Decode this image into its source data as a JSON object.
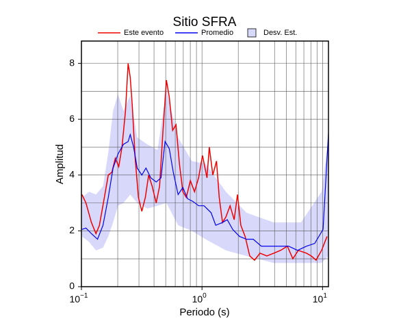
{
  "chart_data": {
    "type": "line",
    "title": "Sitio SFRA",
    "xlabel": "Periodo (s)",
    "ylabel": "Amplitud",
    "log_x": true,
    "grid": true,
    "xlim": [
      0.1,
      11.2
    ],
    "ylim": [
      0,
      8.8
    ],
    "xticks": [
      {
        "value": 0.1,
        "label": "10",
        "exponent": "−1"
      },
      {
        "value": 1,
        "label": "10",
        "exponent": "0"
      },
      {
        "value": 10,
        "label": "10",
        "exponent": "1"
      }
    ],
    "yticks": [
      0,
      2,
      4,
      6,
      8
    ],
    "xgrid": [
      0.2,
      0.3,
      0.4,
      0.5,
      0.6,
      0.7,
      0.8,
      0.9,
      1,
      2,
      3,
      4,
      5,
      6,
      7,
      8,
      9,
      10
    ],
    "ygrid": [
      1,
      2,
      3,
      4,
      5,
      6,
      7,
      8
    ],
    "band": {
      "name": "Desv. Est.",
      "color": "#d8d8fb",
      "x": [
        0.101,
        0.116,
        0.132,
        0.151,
        0.167,
        0.183,
        0.201,
        0.223,
        0.254,
        0.29,
        0.352,
        0.428,
        0.507,
        0.634,
        0.822,
        1.07,
        1.58,
        2.34,
        3.94,
        6.63,
        9.82,
        11.2
      ],
      "upper": [
        3.2,
        3.4,
        3.3,
        3.6,
        4.8,
        6.3,
        6.9,
        6.3,
        6.85,
        5.35,
        5.1,
        4.9,
        7.05,
        5.35,
        4.5,
        4.4,
        3.4,
        2.65,
        2.3,
        2.3,
        3.4,
        5.35
      ],
      "lower": [
        1.8,
        1.6,
        1.3,
        1.4,
        1.8,
        2.3,
        2.9,
        3.0,
        3.3,
        3.0,
        2.8,
        2.9,
        3.0,
        2.2,
        2.0,
        1.7,
        1.3,
        1.1,
        0.85,
        0.85,
        0.85,
        1.1
      ]
    },
    "series": [
      {
        "name": "Este evento",
        "color": "#ee0000",
        "x": [
          0.101,
          0.109,
          0.121,
          0.132,
          0.141,
          0.155,
          0.167,
          0.179,
          0.191,
          0.204,
          0.217,
          0.232,
          0.244,
          0.254,
          0.264,
          0.279,
          0.297,
          0.317,
          0.339,
          0.361,
          0.386,
          0.417,
          0.445,
          0.475,
          0.507,
          0.535,
          0.571,
          0.609,
          0.65,
          0.694,
          0.741,
          0.801,
          0.867,
          0.937,
          1.01,
          1.1,
          1.15,
          1.23,
          1.32,
          1.39,
          1.48,
          1.58,
          1.71,
          1.85,
          1.97,
          2.1,
          2.28,
          2.49,
          2.73,
          3.03,
          3.45,
          3.94,
          4.48,
          5.11,
          5.67,
          6.3,
          7.36,
          8.07,
          8.84,
          9.82,
          10.9
        ],
        "values": [
          3.3,
          3.0,
          2.3,
          1.9,
          2.2,
          3.2,
          4.0,
          4.1,
          4.6,
          4.3,
          5.0,
          6.3,
          8.0,
          7.5,
          6.5,
          4.6,
          3.2,
          2.7,
          3.2,
          4.0,
          3.6,
          3.0,
          3.6,
          5.6,
          7.4,
          6.8,
          5.6,
          5.8,
          4.4,
          3.4,
          3.2,
          3.8,
          3.4,
          3.9,
          4.7,
          3.9,
          5.0,
          4.0,
          4.5,
          3.2,
          2.3,
          2.5,
          2.9,
          2.4,
          3.3,
          2.2,
          1.8,
          1.1,
          0.95,
          1.2,
          1.1,
          1.2,
          1.3,
          1.45,
          1.0,
          1.3,
          1.2,
          1.1,
          0.95,
          1.3,
          1.8
        ]
      },
      {
        "name": "Promedio",
        "color": "#0000ee",
        "x": [
          0.101,
          0.109,
          0.121,
          0.136,
          0.151,
          0.167,
          0.183,
          0.201,
          0.223,
          0.244,
          0.254,
          0.271,
          0.29,
          0.317,
          0.343,
          0.376,
          0.417,
          0.457,
          0.494,
          0.535,
          0.578,
          0.634,
          0.694,
          0.76,
          0.844,
          0.937,
          1.04,
          1.19,
          1.3,
          1.48,
          1.62,
          1.8,
          2.05,
          2.34,
          2.66,
          3.11,
          3.69,
          4.48,
          5.24,
          6.21,
          7.36,
          8.61,
          10.1,
          11.2
        ],
        "values": [
          2.05,
          2.1,
          1.9,
          1.7,
          2.2,
          3.2,
          4.25,
          4.75,
          5.1,
          5.2,
          5.45,
          5.0,
          4.25,
          4.0,
          4.25,
          3.9,
          3.75,
          3.9,
          5.2,
          4.95,
          4.1,
          3.3,
          3.55,
          3.15,
          3.05,
          2.9,
          2.9,
          2.65,
          2.2,
          2.3,
          2.4,
          2.05,
          1.8,
          1.7,
          1.7,
          1.45,
          1.45,
          1.45,
          1.45,
          1.3,
          1.45,
          1.55,
          2.05,
          5.5
        ]
      }
    ]
  }
}
